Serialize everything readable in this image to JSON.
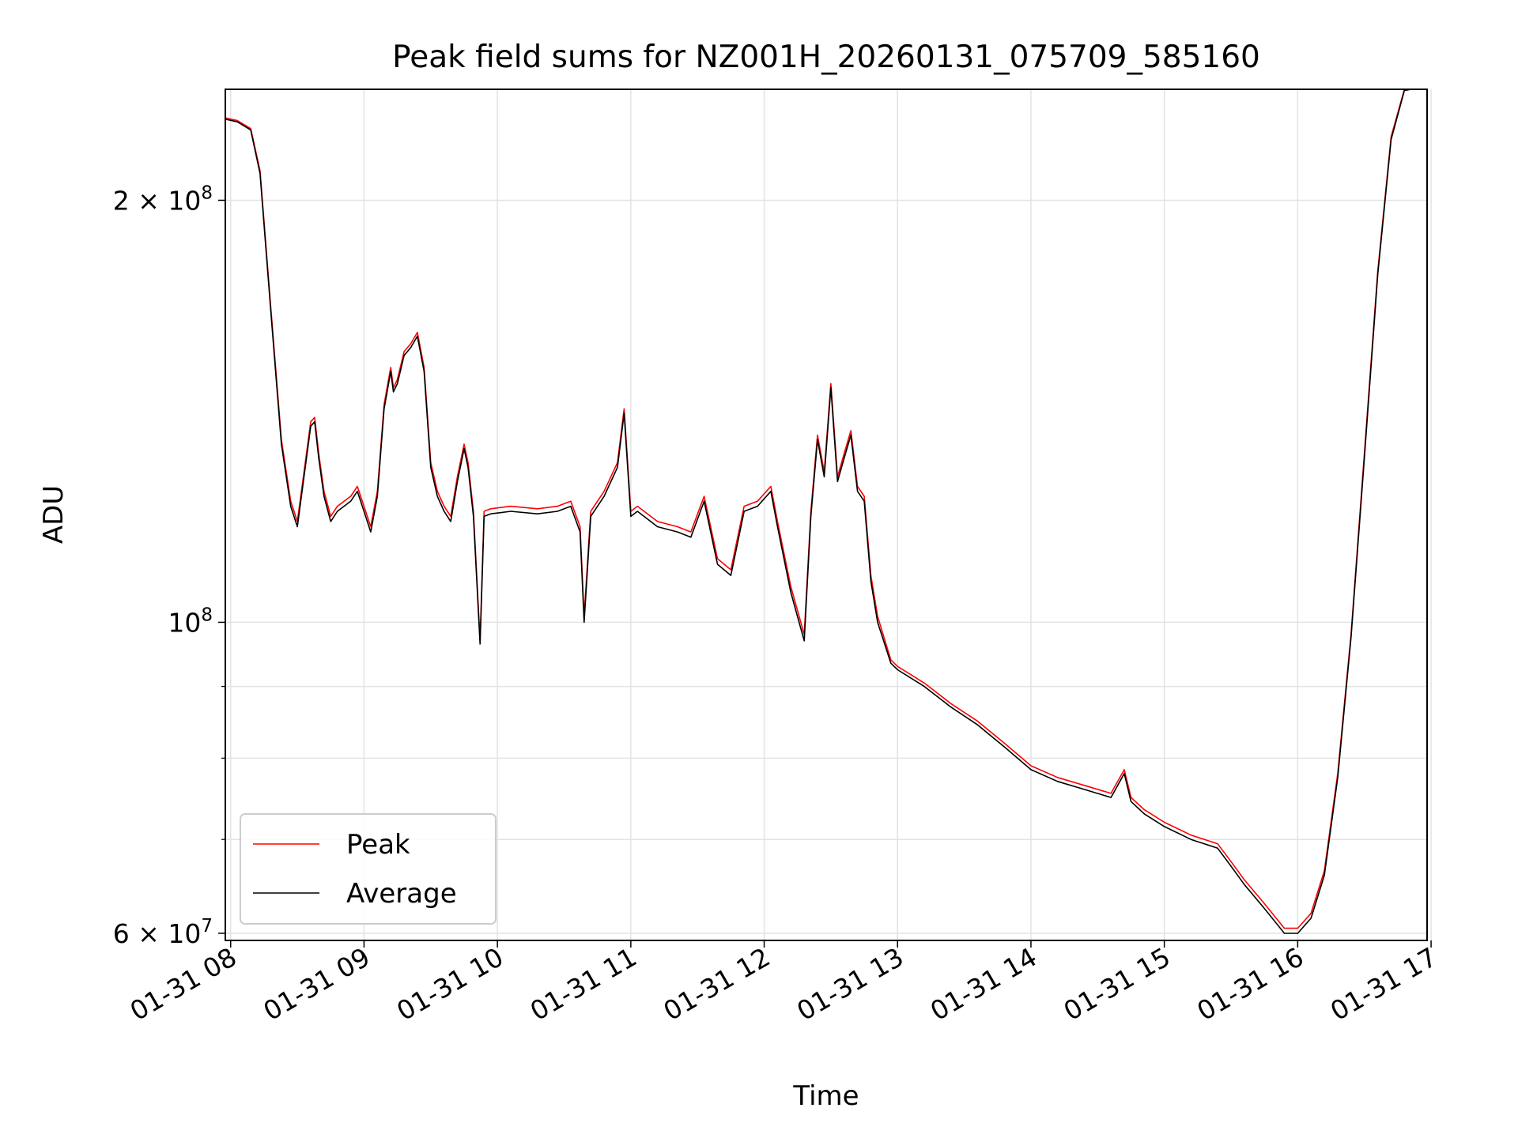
{
  "chart_data": {
    "type": "line",
    "title": "Peak field sums for NZ001H_20260131_075709_585160",
    "xlabel": "Time",
    "ylabel": "ADU",
    "y_scale": "log",
    "ylim": [
      59300000,
      240000000
    ],
    "xlim": [
      7.96,
      16.97
    ],
    "grid": true,
    "legend_position": "lower-left",
    "x_ticks": [
      {
        "value": 8,
        "label": "01-31 08"
      },
      {
        "value": 9,
        "label": "01-31 09"
      },
      {
        "value": 10,
        "label": "01-31 10"
      },
      {
        "value": 11,
        "label": "01-31 11"
      },
      {
        "value": 12,
        "label": "01-31 12"
      },
      {
        "value": 13,
        "label": "01-31 13"
      },
      {
        "value": 14,
        "label": "01-31 14"
      },
      {
        "value": 15,
        "label": "01-31 15"
      },
      {
        "value": 16,
        "label": "01-31 16"
      },
      {
        "value": 17,
        "label": "01-31 17"
      }
    ],
    "y_major_ticks": [
      {
        "value": 60000000,
        "base": "6 × 10",
        "exp": "7"
      },
      {
        "value": 100000000,
        "base": "10",
        "exp": "8"
      },
      {
        "value": 200000000,
        "base": "2 × 10",
        "exp": "8"
      }
    ],
    "y_minor_ticks": [
      70000000,
      80000000,
      90000000
    ],
    "x": [
      7.96,
      8.05,
      8.15,
      8.22,
      8.3,
      8.38,
      8.45,
      8.5,
      8.55,
      8.6,
      8.63,
      8.66,
      8.7,
      8.75,
      8.8,
      8.9,
      8.95,
      9.0,
      9.05,
      9.1,
      9.15,
      9.2,
      9.22,
      9.25,
      9.3,
      9.35,
      9.4,
      9.45,
      9.5,
      9.55,
      9.6,
      9.65,
      9.7,
      9.75,
      9.78,
      9.82,
      9.87,
      9.9,
      9.95,
      10.1,
      10.3,
      10.45,
      10.55,
      10.62,
      10.65,
      10.7,
      10.8,
      10.9,
      10.95,
      11.0,
      11.05,
      11.2,
      11.35,
      11.45,
      11.55,
      11.65,
      11.75,
      11.85,
      11.95,
      12.05,
      12.1,
      12.2,
      12.3,
      12.35,
      12.4,
      12.45,
      12.5,
      12.55,
      12.6,
      12.65,
      12.7,
      12.75,
      12.8,
      12.85,
      12.95,
      13.0,
      13.2,
      13.4,
      13.6,
      13.8,
      14.0,
      14.2,
      14.4,
      14.6,
      14.7,
      14.75,
      14.85,
      15.0,
      15.2,
      15.4,
      15.5,
      15.6,
      15.75,
      15.9,
      16.0,
      16.1,
      16.2,
      16.3,
      16.4,
      16.5,
      16.6,
      16.7,
      16.8,
      16.85,
      16.9,
      16.97
    ],
    "series": [
      {
        "name": "Peak",
        "color": "#ff0000",
        "values": [
          229000000,
          228000000,
          225000000,
          210000000,
          168000000,
          135000000,
          122000000,
          118000000,
          128000000,
          139000000,
          140000000,
          132000000,
          124000000,
          119000000,
          121000000,
          123000000,
          125000000,
          121000000,
          117000000,
          124000000,
          143000000,
          152000000,
          147000000,
          149000000,
          156000000,
          158000000,
          161000000,
          152000000,
          130000000,
          124000000,
          121000000,
          119000000,
          127000000,
          134000000,
          130000000,
          120000000,
          97000000,
          120000000,
          120500000,
          121000000,
          120500000,
          121000000,
          122000000,
          117000000,
          101000000,
          120000000,
          124000000,
          130000000,
          142000000,
          120000000,
          121000000,
          118000000,
          117000000,
          116000000,
          123000000,
          111000000,
          109000000,
          121000000,
          122000000,
          125000000,
          118000000,
          106000000,
          98000000,
          120000000,
          136000000,
          128000000,
          148000000,
          127000000,
          132000000,
          137000000,
          125000000,
          123000000,
          108000000,
          101000000,
          94000000,
          93000000,
          90500000,
          87500000,
          85000000,
          82000000,
          79000000,
          77500000,
          76500000,
          75500000,
          78500000,
          75000000,
          73500000,
          72000000,
          70500000,
          69500000,
          67500000,
          65500000,
          63000000,
          60500000,
          60500000,
          62000000,
          66500000,
          78000000,
          98000000,
          132000000,
          178000000,
          222000000,
          240000000,
          240000000,
          240000000,
          240000000
        ]
      },
      {
        "name": "Average",
        "color": "#000000",
        "values": [
          228500000,
          227500000,
          224500000,
          209000000,
          167000000,
          134000000,
          121000000,
          117000000,
          127000000,
          138000000,
          139000000,
          131000000,
          123000000,
          118000000,
          120000000,
          122000000,
          124000000,
          120000000,
          116000000,
          123000000,
          142000000,
          151000000,
          146000000,
          148000000,
          155000000,
          157000000,
          160000000,
          151000000,
          129000000,
          123000000,
          120000000,
          118000000,
          126000000,
          133000000,
          129000000,
          119000000,
          96500000,
          119000000,
          119500000,
          120000000,
          119500000,
          120000000,
          121000000,
          116000000,
          100000000,
          119000000,
          123000000,
          129000000,
          141000000,
          119000000,
          120000000,
          117000000,
          116000000,
          115000000,
          122000000,
          110000000,
          108000000,
          120000000,
          121000000,
          124000000,
          117000000,
          105000000,
          97000000,
          119000000,
          135000000,
          127000000,
          147000000,
          126000000,
          131000000,
          136000000,
          124000000,
          122000000,
          107000000,
          100000000,
          93500000,
          92500000,
          90000000,
          87000000,
          84500000,
          81500000,
          78500000,
          77000000,
          76000000,
          75000000,
          78000000,
          74500000,
          73000000,
          71500000,
          70000000,
          69000000,
          67000000,
          65000000,
          62500000,
          60000000,
          60000000,
          61500000,
          66000000,
          77500000,
          97500000,
          131000000,
          177000000,
          221000000,
          239500000,
          240000000,
          240000000,
          240000000
        ]
      }
    ]
  }
}
